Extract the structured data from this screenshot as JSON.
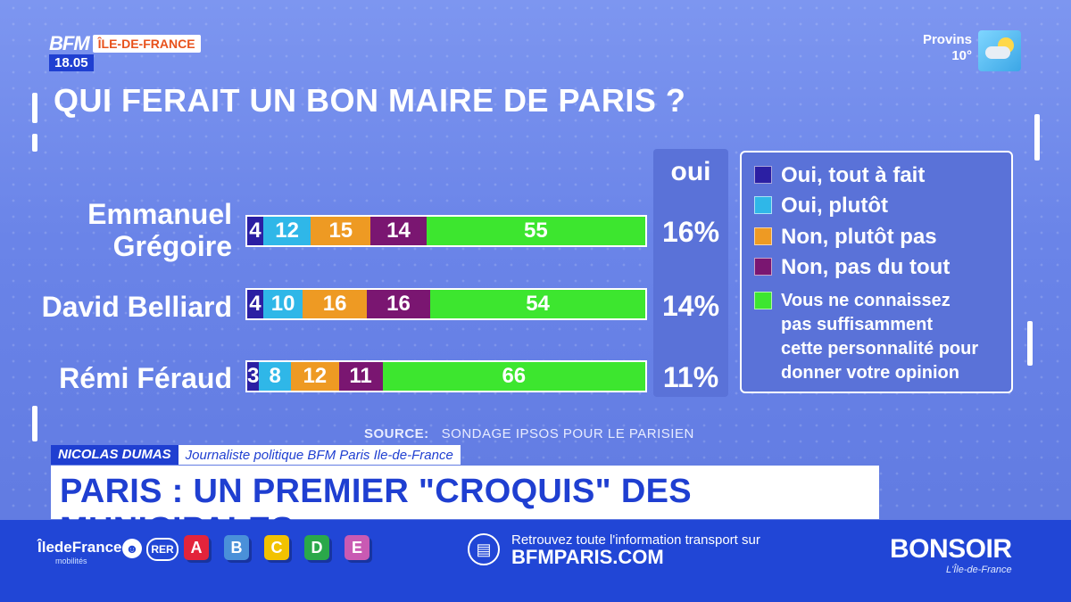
{
  "channel": {
    "brand": "BFM",
    "region": "ÎLE-DE-FRANCE",
    "time": "18.05"
  },
  "weather": {
    "city": "Provins",
    "temp": "10°",
    "icon": "sun-cloud-icon"
  },
  "chart_data": {
    "type": "bar",
    "title": "QUI FERAIT UN BON MAIRE DE PARIS ?",
    "stacked": true,
    "categories": [
      "Emmanuel Grégoire",
      "David Belliard",
      "Rémi Féraud"
    ],
    "category_lines": [
      [
        "Emmanuel",
        "Grégoire"
      ],
      [
        "David Belliard"
      ],
      [
        "Rémi Féraud"
      ]
    ],
    "series": [
      {
        "name": "Oui, tout à fait",
        "color": "#2b1fa3",
        "values": [
          4,
          4,
          3
        ]
      },
      {
        "name": "Oui, plutôt",
        "color": "#2fb7e8",
        "values": [
          12,
          10,
          8
        ]
      },
      {
        "name": "Non, plutôt pas",
        "color": "#ee9a23",
        "values": [
          15,
          16,
          12
        ]
      },
      {
        "name": "Non, pas du tout",
        "color": "#7a1671",
        "values": [
          14,
          16,
          11
        ]
      },
      {
        "name": "Vous ne connaissez pas suffisamment cette personnalité pour donner votre opinion",
        "color": "#3de62f",
        "values": [
          55,
          54,
          66
        ],
        "legend_lines": [
          "Vous ne connaissez",
          "pas suffisamment",
          "cette personnalité pour",
          "donner votre opinion"
        ]
      }
    ],
    "oui_header": "oui",
    "oui_totals": [
      "16%",
      "14%",
      "11%"
    ],
    "legend_position": "right",
    "source_label": "SOURCE:",
    "source_text": "SONDAGE IPSOS POUR LE PARISIEN"
  },
  "lower_third": {
    "name": "NICOLAS DUMAS",
    "role": "Journaliste politique BFM Paris Ile-de-France",
    "headline": "PARIS : UN PREMIER \"CROQUIS\" DES MUNICIPALES"
  },
  "footer": {
    "operator": "ÎledeFrance",
    "operator_sub": "mobilités",
    "rer": "RER",
    "lines": [
      {
        "label": "A",
        "color": "#e3243b"
      },
      {
        "label": "B",
        "color": "#4a90d9"
      },
      {
        "label": "C",
        "color": "#f2c200"
      },
      {
        "label": "D",
        "color": "#2aa84a"
      },
      {
        "label": "E",
        "color": "#c95ab3"
      }
    ],
    "message": "Retrouvez toute l'information transport sur",
    "site": "BFMPARIS.COM",
    "show_title": "BONSOIR",
    "show_sub": "L'Île-de-France"
  }
}
